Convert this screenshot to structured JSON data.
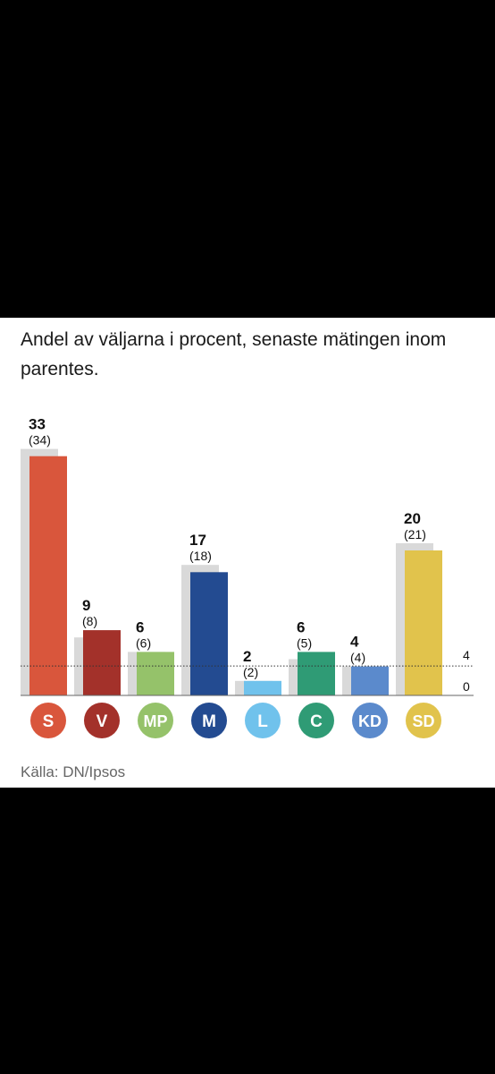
{
  "subtitle": "Andel av väljarna i procent, senaste mätingen inom parentes.",
  "source": "Källa: DN/Ipsos",
  "chart_data": {
    "type": "bar",
    "categories": [
      "S",
      "V",
      "MP",
      "M",
      "L",
      "C",
      "KD",
      "SD"
    ],
    "series": [
      {
        "values": [
          33,
          9,
          6,
          17,
          2,
          6,
          4,
          20
        ]
      },
      {
        "values": [
          34,
          8,
          6,
          18,
          2,
          5,
          4,
          21
        ]
      }
    ],
    "current_labels": [
      "33",
      "9",
      "6",
      "17",
      "2",
      "6",
      "4",
      "20"
    ],
    "previous_labels": [
      "(34)",
      "(8)",
      "(6)",
      "(18)",
      "(2)",
      "(5)",
      "(4)",
      "(21)"
    ],
    "colors": [
      "#d9563c",
      "#a3312a",
      "#95c26a",
      "#234b91",
      "#70c2ec",
      "#2f9b75",
      "#5b8acc",
      "#e1c34c"
    ],
    "previous_color": "#d9d9d9",
    "threshold": 4,
    "threshold_label": "4",
    "zero_label": "0",
    "ylim": [
      0,
      34
    ]
  }
}
